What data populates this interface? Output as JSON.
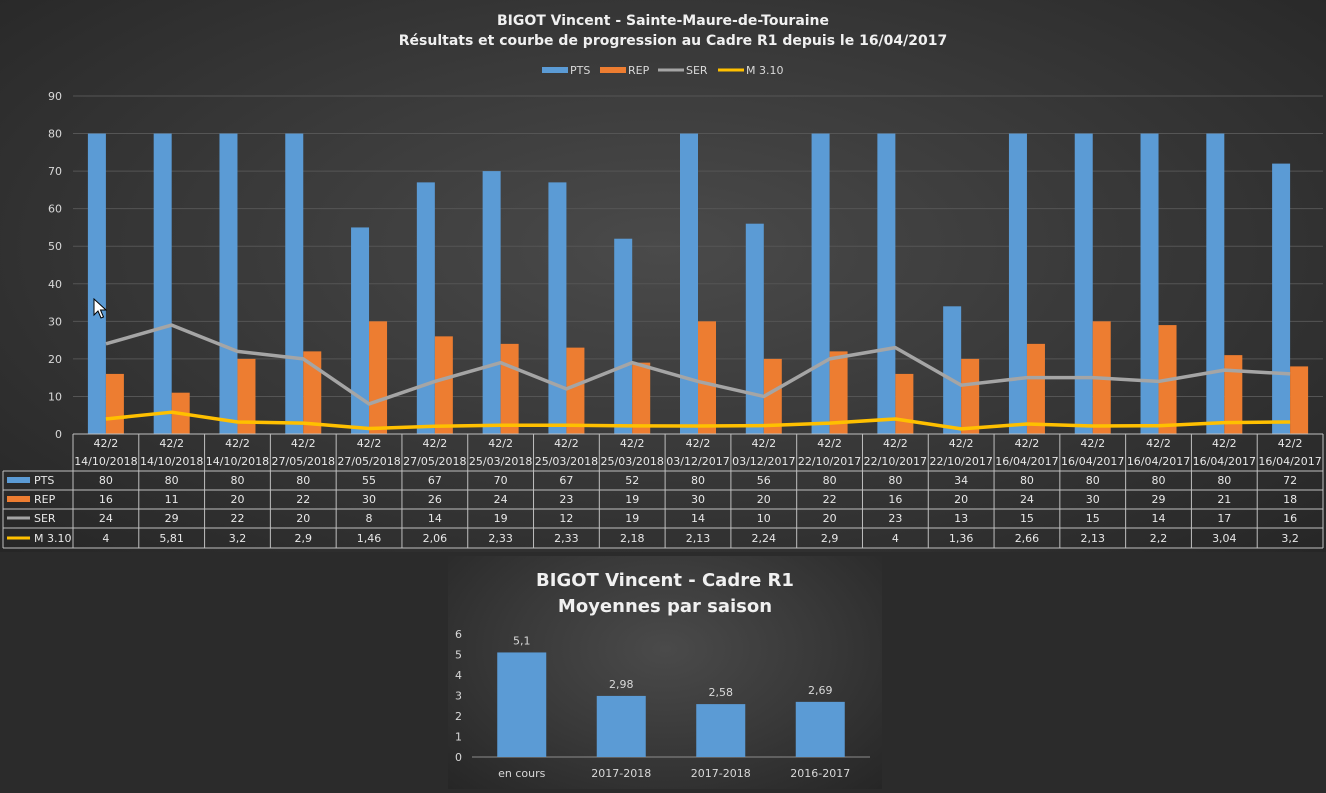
{
  "chart_data": [
    {
      "type": "bar",
      "title": "BIGOT Vincent - Sainte-Maure-de-Touraine",
      "subtitle": "Résultats et courbe de progression au Cadre R1 depuis le 16/04/2017",
      "categories": [
        [
          "42/2",
          "14/10/2018"
        ],
        [
          "42/2",
          "14/10/2018"
        ],
        [
          "42/2",
          "14/10/2018"
        ],
        [
          "42/2",
          "27/05/2018"
        ],
        [
          "42/2",
          "27/05/2018"
        ],
        [
          "42/2",
          "27/05/2018"
        ],
        [
          "42/2",
          "25/03/2018"
        ],
        [
          "42/2",
          "25/03/2018"
        ],
        [
          "42/2",
          "25/03/2018"
        ],
        [
          "42/2",
          "03/12/2017"
        ],
        [
          "42/2",
          "03/12/2017"
        ],
        [
          "42/2",
          "22/10/2017"
        ],
        [
          "42/2",
          "22/10/2017"
        ],
        [
          "42/2",
          "22/10/2017"
        ],
        [
          "42/2",
          "16/04/2017"
        ],
        [
          "42/2",
          "16/04/2017"
        ],
        [
          "42/2",
          "16/04/2017"
        ],
        [
          "42/2",
          "16/04/2017"
        ],
        [
          "42/2",
          "16/04/2017"
        ]
      ],
      "ylim": [
        0,
        90
      ],
      "yticks": [
        "0",
        "10",
        "20",
        "30",
        "40",
        "50",
        "60",
        "70",
        "80",
        "90"
      ],
      "grid": true,
      "legend_position": "top",
      "series": [
        {
          "name": "PTS",
          "kind": "bar",
          "color": "#5b9bd5",
          "values": [
            80,
            80,
            80,
            80,
            55,
            67,
            70,
            67,
            52,
            80,
            56,
            80,
            80,
            34,
            80,
            80,
            80,
            80,
            72
          ],
          "labels": [
            "80",
            "80",
            "80",
            "80",
            "55",
            "67",
            "70",
            "67",
            "52",
            "80",
            "56",
            "80",
            "80",
            "34",
            "80",
            "80",
            "80",
            "80",
            "72"
          ]
        },
        {
          "name": "REP",
          "kind": "bar",
          "color": "#ed7d31",
          "values": [
            16,
            11,
            20,
            22,
            30,
            26,
            24,
            23,
            19,
            30,
            20,
            22,
            16,
            20,
            24,
            30,
            29,
            21,
            18
          ],
          "labels": [
            "16",
            "11",
            "20",
            "22",
            "30",
            "26",
            "24",
            "23",
            "19",
            "30",
            "20",
            "22",
            "16",
            "20",
            "24",
            "30",
            "29",
            "21",
            "18"
          ]
        },
        {
          "name": "SER",
          "kind": "line",
          "color": "#a5a5a5",
          "values": [
            24,
            29,
            22,
            20,
            8,
            14,
            19,
            12,
            19,
            14,
            10,
            20,
            23,
            13,
            15,
            15,
            14,
            17,
            16
          ],
          "labels": [
            "24",
            "29",
            "22",
            "20",
            "8",
            "14",
            "19",
            "12",
            "19",
            "14",
            "10",
            "20",
            "23",
            "13",
            "15",
            "15",
            "14",
            "17",
            "16"
          ]
        },
        {
          "name": "M 3.10",
          "kind": "line",
          "color": "#ffc000",
          "values": [
            4,
            5.81,
            3.2,
            2.9,
            1.46,
            2.06,
            2.33,
            2.33,
            2.18,
            2.13,
            2.24,
            2.9,
            4,
            1.36,
            2.66,
            2.13,
            2.2,
            3.04,
            3.2
          ],
          "labels": [
            "4",
            "5,81",
            "3,2",
            "2,9",
            "1,46",
            "2,06",
            "2,33",
            "2,33",
            "2,18",
            "2,13",
            "2,24",
            "2,9",
            "4",
            "1,36",
            "2,66",
            "2,13",
            "2,2",
            "3,04",
            "3,2"
          ]
        }
      ]
    },
    {
      "type": "bar",
      "title": "BIGOT Vincent - Cadre R1",
      "subtitle": "Moyennes par saison",
      "categories": [
        "en cours",
        "2017-2018",
        "2017-2018",
        "2016-2017"
      ],
      "values": [
        5.1,
        2.98,
        2.58,
        2.69
      ],
      "value_labels": [
        "5,1",
        "2,98",
        "2,58",
        "2,69"
      ],
      "ylim": [
        0,
        6
      ],
      "yticks": [
        "0",
        "1",
        "2",
        "3",
        "4",
        "5",
        "6"
      ],
      "color": "#5b9bd5",
      "grid": false
    }
  ],
  "icons": {
    "cursor": "mouse-pointer-icon"
  }
}
